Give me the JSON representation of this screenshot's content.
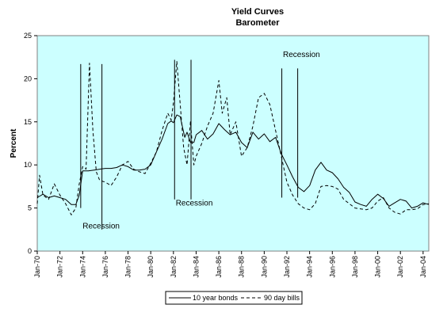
{
  "chart_data": {
    "type": "line",
    "title": "Yield Curves",
    "subtitle": "Barometer",
    "ylabel": "Percent",
    "xlabel": "",
    "ylim": [
      0,
      25
    ],
    "y_ticks": [
      "0",
      "5",
      "10",
      "15",
      "20",
      "25"
    ],
    "xlim": [
      1970.0,
      2004.5
    ],
    "x_ticks": [
      {
        "label": "Jan-70",
        "year": 1970
      },
      {
        "label": "Jan-72",
        "year": 1972
      },
      {
        "label": "Jan-74",
        "year": 1974
      },
      {
        "label": "Jan-76",
        "year": 1976
      },
      {
        "label": "Jan-78",
        "year": 1978
      },
      {
        "label": "Jan-80",
        "year": 1980
      },
      {
        "label": "Jan-82",
        "year": 1982
      },
      {
        "label": "Jan-84",
        "year": 1984
      },
      {
        "label": "Jan-86",
        "year": 1986
      },
      {
        "label": "Jan-88",
        "year": 1988
      },
      {
        "label": "Jan-90",
        "year": 1990
      },
      {
        "label": "Jan-92",
        "year": 1992
      },
      {
        "label": "Jan-94",
        "year": 1994
      },
      {
        "label": "Jan-96",
        "year": 1996
      },
      {
        "label": "Jan-98",
        "year": 1998
      },
      {
        "label": "Jan-00",
        "year": 2000
      },
      {
        "label": "Jan-02",
        "year": 2002
      },
      {
        "label": "Jan-04",
        "year": 2004
      }
    ],
    "grid": false,
    "legend_position": "bottom",
    "colors": {
      "plot_bg": "#ccffff",
      "line": "#000000"
    },
    "series": [
      {
        "name": "10 year bonds",
        "style": "solid",
        "points": [
          [
            1970.0,
            6.2
          ],
          [
            1970.5,
            6.6
          ],
          [
            1971.0,
            6.2
          ],
          [
            1971.5,
            6.4
          ],
          [
            1972.0,
            6.2
          ],
          [
            1972.5,
            6.0
          ],
          [
            1973.0,
            5.4
          ],
          [
            1973.4,
            5.4
          ],
          [
            1973.7,
            6.5
          ],
          [
            1974.0,
            9.3
          ],
          [
            1974.5,
            9.3
          ],
          [
            1975.0,
            9.4
          ],
          [
            1975.5,
            9.5
          ],
          [
            1976.0,
            9.6
          ],
          [
            1976.5,
            9.6
          ],
          [
            1977.0,
            9.7
          ],
          [
            1977.5,
            10.0
          ],
          [
            1978.0,
            9.8
          ],
          [
            1978.5,
            9.4
          ],
          [
            1979.0,
            9.4
          ],
          [
            1979.5,
            9.5
          ],
          [
            1980.0,
            10.0
          ],
          [
            1980.5,
            11.5
          ],
          [
            1981.0,
            13.0
          ],
          [
            1981.5,
            14.8
          ],
          [
            1981.8,
            15.1
          ],
          [
            1982.0,
            14.9
          ],
          [
            1982.3,
            15.8
          ],
          [
            1982.6,
            15.6
          ],
          [
            1983.0,
            13.2
          ],
          [
            1983.2,
            13.8
          ],
          [
            1983.5,
            12.6
          ],
          [
            1983.8,
            12.6
          ],
          [
            1984.0,
            13.5
          ],
          [
            1984.5,
            14.0
          ],
          [
            1985.0,
            13.0
          ],
          [
            1985.5,
            13.6
          ],
          [
            1986.0,
            14.8
          ],
          [
            1986.5,
            14.1
          ],
          [
            1987.0,
            13.5
          ],
          [
            1987.5,
            13.8
          ],
          [
            1988.0,
            12.6
          ],
          [
            1988.5,
            12.0
          ],
          [
            1989.0,
            13.8
          ],
          [
            1989.5,
            13.0
          ],
          [
            1990.0,
            13.6
          ],
          [
            1990.5,
            12.7
          ],
          [
            1991.0,
            13.2
          ],
          [
            1991.5,
            11.3
          ],
          [
            1992.0,
            10.0
          ],
          [
            1992.5,
            8.6
          ],
          [
            1993.0,
            7.4
          ],
          [
            1993.5,
            6.9
          ],
          [
            1994.0,
            7.6
          ],
          [
            1994.5,
            9.4
          ],
          [
            1995.0,
            10.3
          ],
          [
            1995.5,
            9.4
          ],
          [
            1996.0,
            9.1
          ],
          [
            1996.5,
            8.4
          ],
          [
            1997.0,
            7.4
          ],
          [
            1997.5,
            6.8
          ],
          [
            1998.0,
            5.7
          ],
          [
            1998.5,
            5.4
          ],
          [
            1999.0,
            5.2
          ],
          [
            1999.5,
            6.0
          ],
          [
            2000.0,
            6.6
          ],
          [
            2000.5,
            6.1
          ],
          [
            2001.0,
            5.2
          ],
          [
            2001.5,
            5.6
          ],
          [
            2002.0,
            6.0
          ],
          [
            2002.5,
            5.8
          ],
          [
            2003.0,
            5.0
          ],
          [
            2003.5,
            5.2
          ],
          [
            2004.0,
            5.6
          ],
          [
            2004.5,
            5.4
          ]
        ]
      },
      {
        "name": "90 day bills",
        "style": "dashed",
        "points": [
          [
            1970.0,
            5.5
          ],
          [
            1970.2,
            8.8
          ],
          [
            1970.5,
            6.5
          ],
          [
            1971.0,
            6.0
          ],
          [
            1971.5,
            7.8
          ],
          [
            1972.0,
            6.5
          ],
          [
            1972.5,
            5.5
          ],
          [
            1973.0,
            4.2
          ],
          [
            1973.4,
            5.0
          ],
          [
            1973.7,
            7.8
          ],
          [
            1974.0,
            9.8
          ],
          [
            1974.3,
            9.5
          ],
          [
            1974.6,
            21.8
          ],
          [
            1974.9,
            14.0
          ],
          [
            1975.2,
            9.2
          ],
          [
            1975.5,
            8.2
          ],
          [
            1976.0,
            8.0
          ],
          [
            1976.5,
            7.6
          ],
          [
            1977.0,
            8.6
          ],
          [
            1977.5,
            10.0
          ],
          [
            1978.0,
            10.4
          ],
          [
            1978.5,
            9.5
          ],
          [
            1979.0,
            9.2
          ],
          [
            1979.5,
            9.0
          ],
          [
            1980.0,
            10.2
          ],
          [
            1980.5,
            11.5
          ],
          [
            1981.0,
            14.0
          ],
          [
            1981.5,
            16.0
          ],
          [
            1981.8,
            15.2
          ],
          [
            1982.0,
            17.2
          ],
          [
            1982.3,
            22.0
          ],
          [
            1982.6,
            17.0
          ],
          [
            1982.9,
            12.0
          ],
          [
            1983.2,
            10.0
          ],
          [
            1983.5,
            15.0
          ],
          [
            1983.8,
            10.0
          ],
          [
            1984.0,
            11.0
          ],
          [
            1984.5,
            12.5
          ],
          [
            1985.0,
            14.5
          ],
          [
            1985.5,
            16.0
          ],
          [
            1986.0,
            19.8
          ],
          [
            1986.3,
            16.0
          ],
          [
            1986.7,
            17.8
          ],
          [
            1987.0,
            13.5
          ],
          [
            1987.5,
            15.0
          ],
          [
            1988.0,
            11.0
          ],
          [
            1988.5,
            12.0
          ],
          [
            1989.0,
            14.5
          ],
          [
            1989.5,
            17.8
          ],
          [
            1990.0,
            18.3
          ],
          [
            1990.5,
            17.0
          ],
          [
            1991.0,
            14.0
          ],
          [
            1991.5,
            11.0
          ],
          [
            1992.0,
            8.0
          ],
          [
            1992.5,
            6.5
          ],
          [
            1993.0,
            5.5
          ],
          [
            1993.5,
            5.0
          ],
          [
            1994.0,
            4.8
          ],
          [
            1994.5,
            5.5
          ],
          [
            1995.0,
            7.5
          ],
          [
            1995.5,
            7.6
          ],
          [
            1996.0,
            7.5
          ],
          [
            1996.5,
            7.2
          ],
          [
            1997.0,
            6.0
          ],
          [
            1997.5,
            5.5
          ],
          [
            1998.0,
            5.0
          ],
          [
            1998.5,
            4.9
          ],
          [
            1999.0,
            4.8
          ],
          [
            1999.5,
            5.0
          ],
          [
            2000.0,
            5.8
          ],
          [
            2000.5,
            6.2
          ],
          [
            2001.0,
            5.0
          ],
          [
            2001.5,
            4.5
          ],
          [
            2002.0,
            4.3
          ],
          [
            2002.5,
            4.8
          ],
          [
            2003.0,
            4.8
          ],
          [
            2003.5,
            4.9
          ],
          [
            2004.0,
            5.4
          ],
          [
            2004.5,
            5.5
          ]
        ]
      }
    ],
    "recessions": [
      {
        "x": 1973.83,
        "y_top": 21.7,
        "y_bottom": 5.0
      },
      {
        "x": 1975.7,
        "y_top": 21.7,
        "y_bottom": 2.5
      },
      {
        "x": 1982.1,
        "y_top": 22.2,
        "y_bottom": 6.0
      },
      {
        "x": 1983.55,
        "y_top": 22.2,
        "y_bottom": 6.0
      },
      {
        "x": 1991.55,
        "y_top": 21.2,
        "y_bottom": 6.2
      },
      {
        "x": 1992.95,
        "y_top": 21.2,
        "y_bottom": 6.2
      }
    ],
    "annotations": [
      {
        "text": "Recession",
        "x": 1974.0,
        "y": 2.6
      },
      {
        "text": "Recession",
        "x": 1982.2,
        "y": 5.3
      },
      {
        "text": "Recession",
        "x": 1991.65,
        "y": 22.5
      }
    ]
  }
}
